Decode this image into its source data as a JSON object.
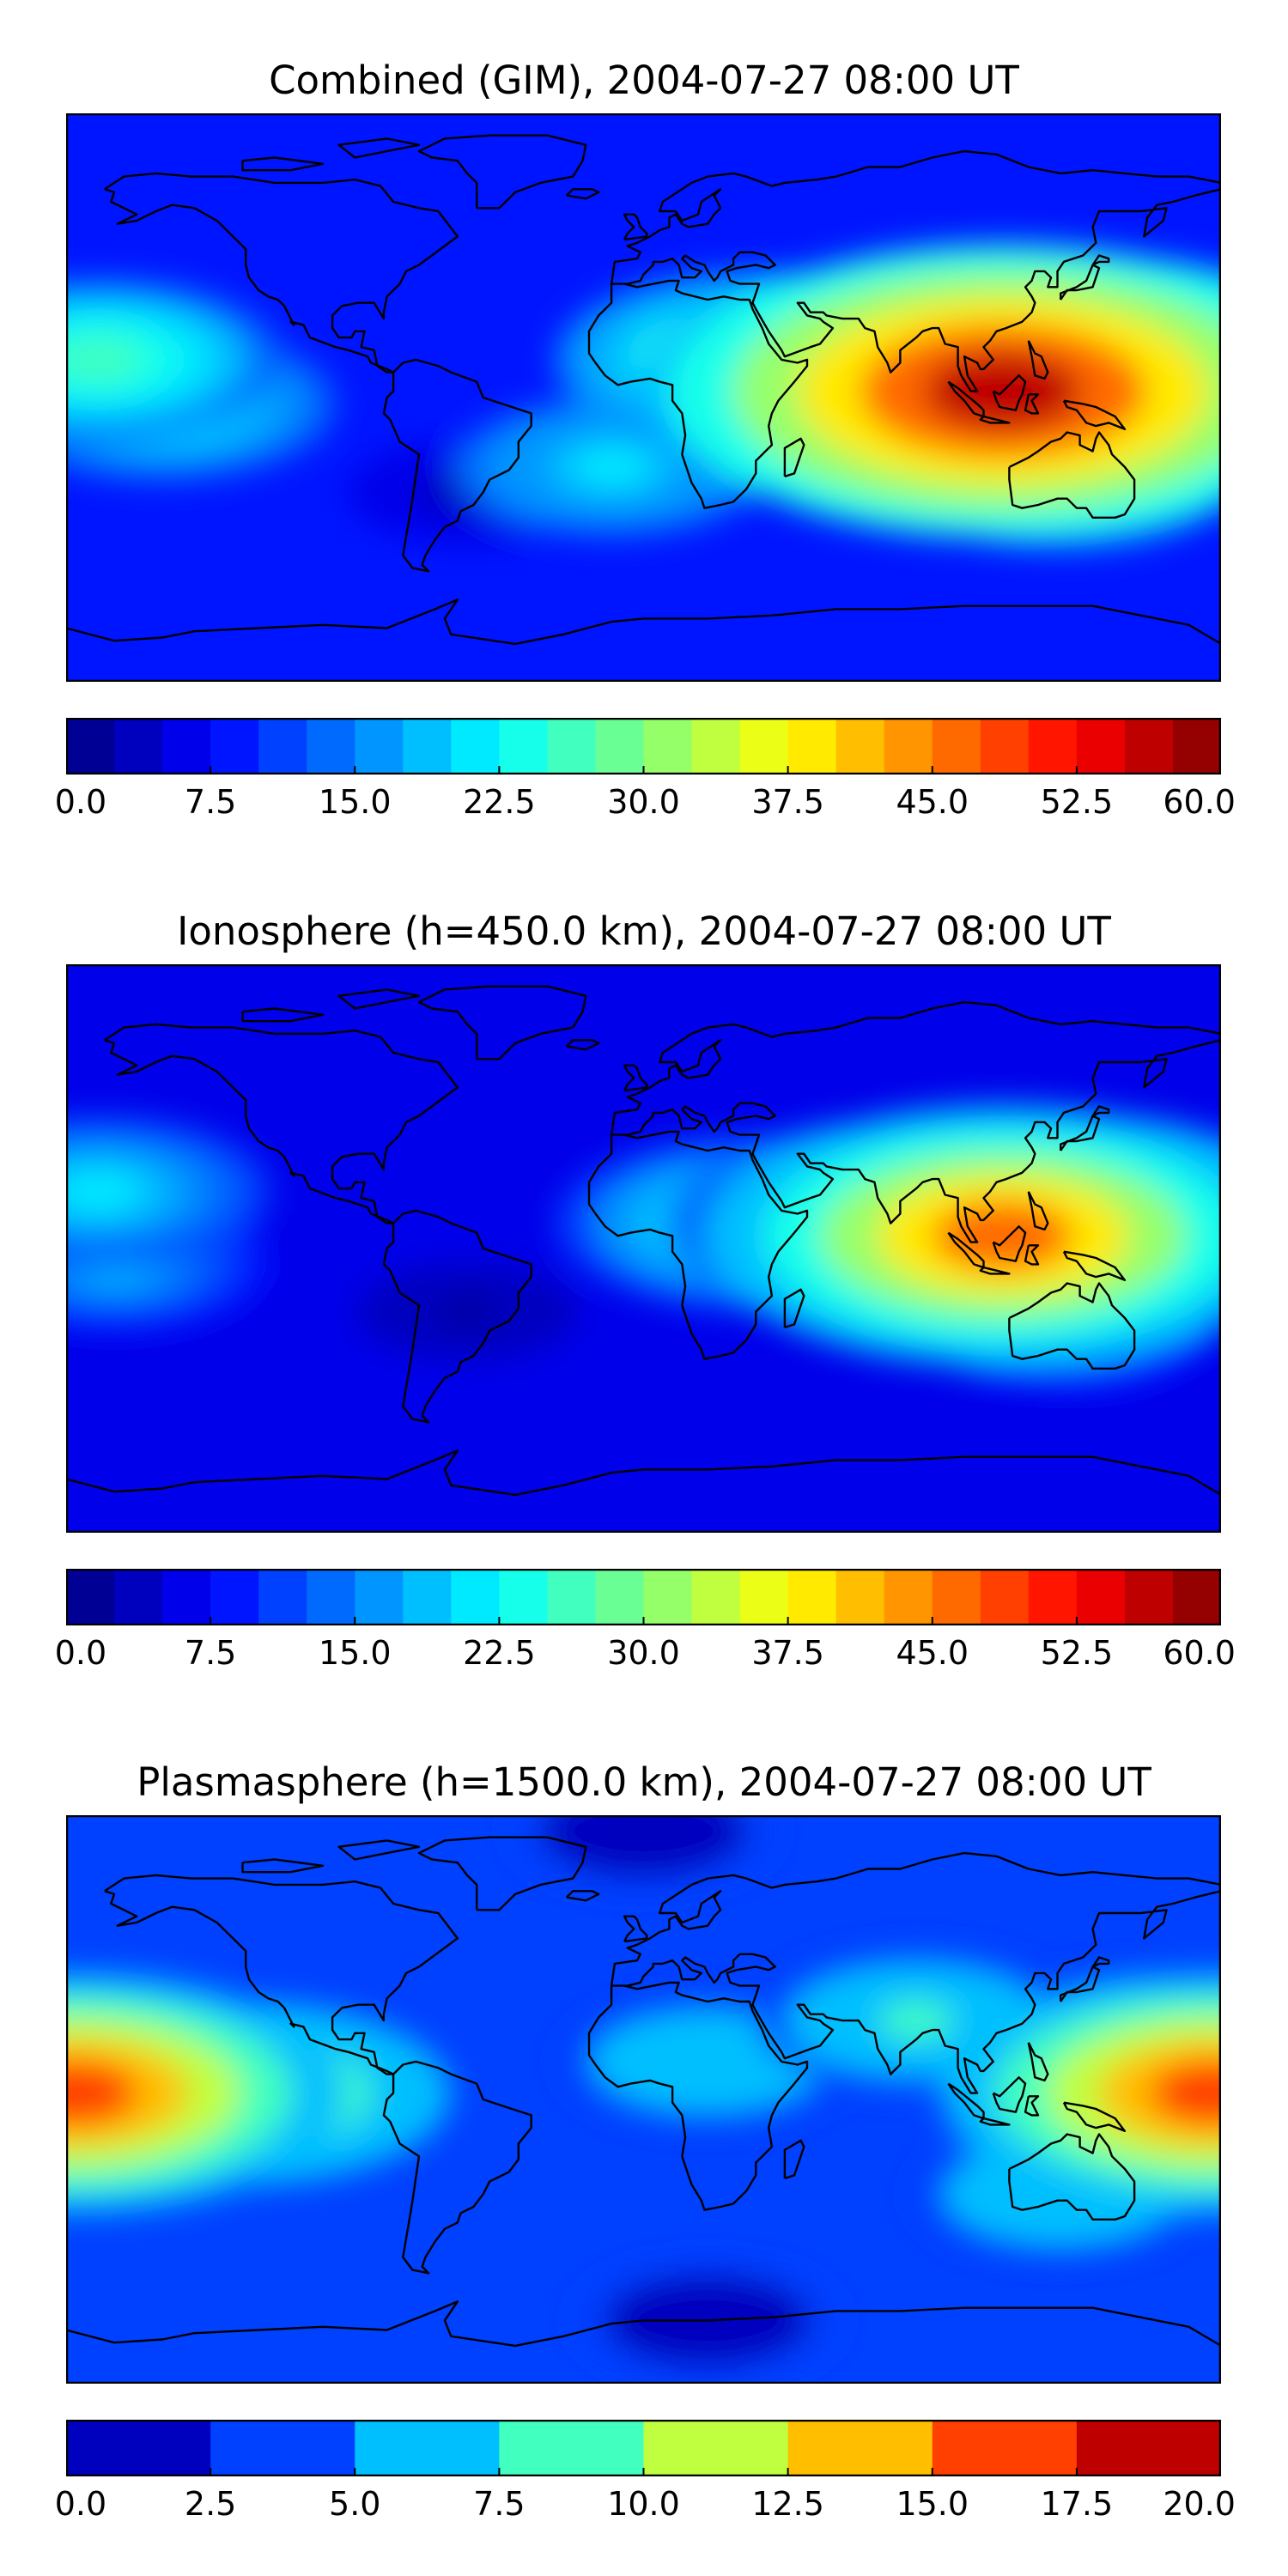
{
  "chart_data": [
    {
      "type": "heatmap",
      "title": "Combined (GIM), 2004-07-27 08:00 UT",
      "projection": "plate-carree world map with coastlines",
      "xlim": [
        -180,
        180
      ],
      "ylim": [
        -90,
        90
      ],
      "colormap": "jet",
      "colorbar": {
        "orientation": "horizontal",
        "placement": "below",
        "range": [
          0,
          60
        ],
        "levels": 24,
        "ticks": [
          "0.0",
          "7.5",
          "15.0",
          "22.5",
          "30.0",
          "37.5",
          "45.0",
          "52.5",
          "60.0"
        ]
      },
      "background_value": 9,
      "features": [
        {
          "region": "Indonesia / SE Asia maximum",
          "lon": 112,
          "lat": 2,
          "value": 55
        },
        {
          "region": "South Asia / Indian Ocean",
          "lon": 85,
          "lat": 5,
          "value": 44
        },
        {
          "region": "western Pacific",
          "lon": 140,
          "lat": 8,
          "value": 42
        },
        {
          "region": "Africa / Arabia",
          "lon": 35,
          "lat": 12,
          "value": 30
        },
        {
          "region": "Australia",
          "lon": 133,
          "lat": -25,
          "value": 24
        },
        {
          "region": "South Atlantic band",
          "lon": -10,
          "lat": -22,
          "value": 22
        },
        {
          "region": "eastern Pacific",
          "lon": -170,
          "lat": 12,
          "value": 27
        },
        {
          "region": "eastern Pacific south",
          "lon": -150,
          "lat": -2,
          "value": 25
        },
        {
          "region": "Americas minimum",
          "lon": -55,
          "lat": -30,
          "value": 3
        }
      ]
    },
    {
      "type": "heatmap",
      "title": "Ionosphere  (h=450.0 km), 2004-07-27 08:00 UT",
      "projection": "plate-carree world map with coastlines",
      "xlim": [
        -180,
        180
      ],
      "ylim": [
        -90,
        90
      ],
      "colormap": "jet",
      "colorbar": {
        "orientation": "horizontal",
        "placement": "below",
        "range": [
          0,
          60
        ],
        "levels": 24,
        "ticks": [
          "0.0",
          "7.5",
          "15.0",
          "22.5",
          "30.0",
          "37.5",
          "45.0",
          "52.5",
          "60.0"
        ]
      },
      "background_value": 6,
      "features": [
        {
          "region": "Indonesia / SE Asia maximum",
          "lon": 112,
          "lat": 4,
          "value": 45
        },
        {
          "region": "South Asia / Indian Ocean",
          "lon": 80,
          "lat": 8,
          "value": 33
        },
        {
          "region": "western Pacific",
          "lon": 140,
          "lat": 12,
          "value": 30
        },
        {
          "region": "Africa / Arabia",
          "lon": 35,
          "lat": 8,
          "value": 27
        },
        {
          "region": "Australia",
          "lon": 133,
          "lat": -25,
          "value": 17
        },
        {
          "region": "eastern Pacific",
          "lon": -170,
          "lat": 18,
          "value": 22
        },
        {
          "region": "eastern Pacific south",
          "lon": -165,
          "lat": -5,
          "value": 19
        },
        {
          "region": "Americas minimum",
          "lon": -55,
          "lat": -20,
          "value": 2
        }
      ]
    },
    {
      "type": "heatmap",
      "title": "Plasmasphere (h=1500.0 km), 2004-07-27 08:00 UT",
      "projection": "plate-carree world map with coastlines",
      "xlim": [
        -180,
        180
      ],
      "ylim": [
        -90,
        90
      ],
      "colormap": "jet",
      "colorbar": {
        "orientation": "horizontal",
        "placement": "below",
        "range": [
          0,
          20
        ],
        "levels": 8,
        "ticks": [
          "0.0",
          "2.5",
          "5.0",
          "7.5",
          "10.0",
          "12.5",
          "15.0",
          "17.5",
          "20.0"
        ]
      },
      "background_value": 3.5,
      "features": [
        {
          "region": "date-line maximum (west)",
          "lon": -178,
          "lat": 2,
          "value": 15
        },
        {
          "region": "date-line maximum (east)",
          "lon": 178,
          "lat": 2,
          "value": 15
        },
        {
          "region": "eastern Pacific",
          "lon": -125,
          "lat": 2,
          "value": 11
        },
        {
          "region": "western Pacific",
          "lon": 150,
          "lat": 18,
          "value": 8
        },
        {
          "region": "Asia",
          "lon": 85,
          "lat": 25,
          "value": 8
        },
        {
          "region": "Africa",
          "lon": 20,
          "lat": 12,
          "value": 7
        },
        {
          "region": "Australia",
          "lon": 130,
          "lat": -30,
          "value": 7
        },
        {
          "region": "polar minimum (north)",
          "lon": 0,
          "lat": 85,
          "value": 1
        },
        {
          "region": "polar minimum (south)",
          "lon": 20,
          "lat": -70,
          "value": 1
        }
      ]
    }
  ]
}
